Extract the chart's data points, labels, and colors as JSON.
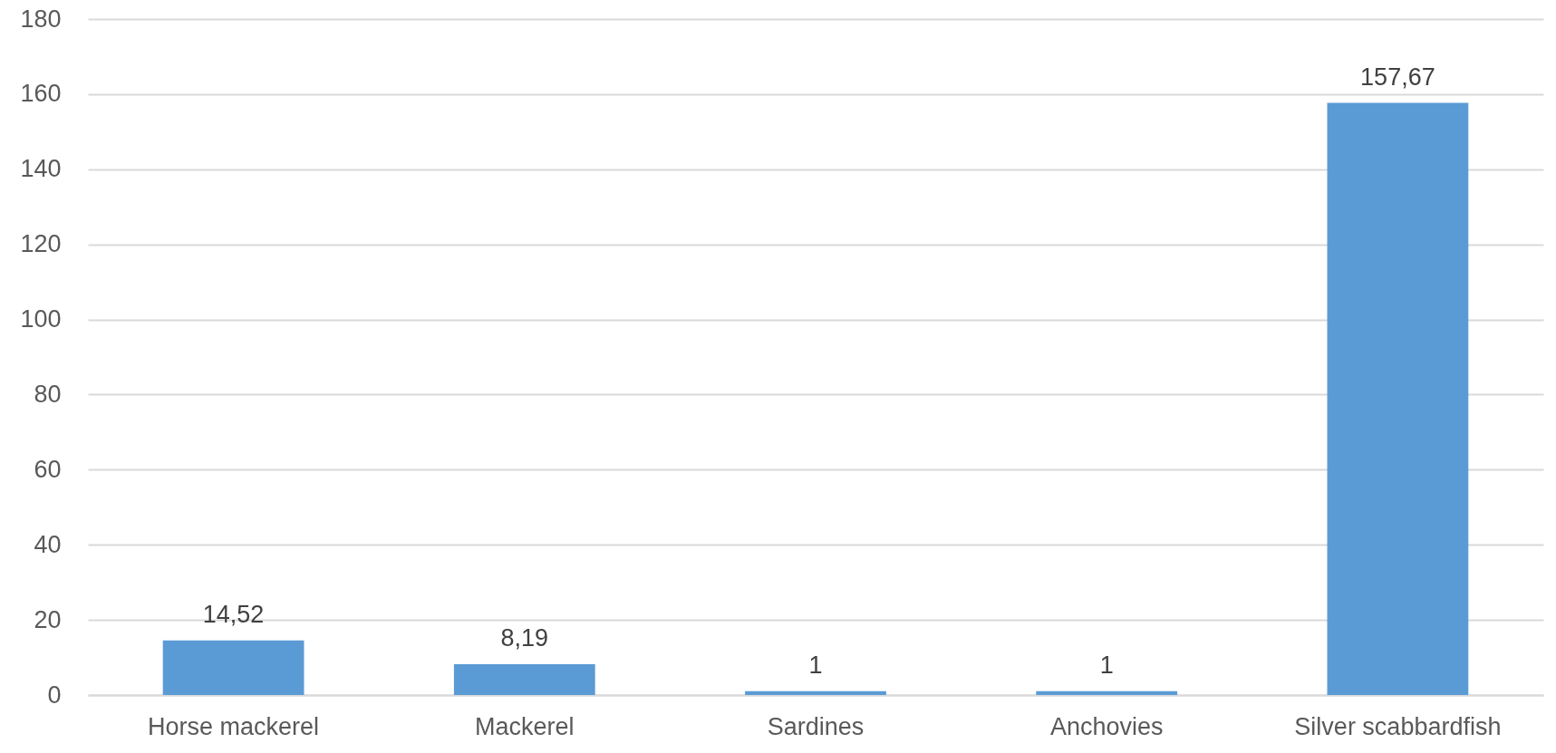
{
  "chart_data": {
    "type": "bar",
    "categories": [
      "Horse mackerel",
      "Mackerel",
      "Sardines",
      "Anchovies",
      "Silver scabbardfish"
    ],
    "values": [
      14.52,
      8.19,
      1,
      1,
      157.67
    ],
    "value_labels": [
      "14,52",
      "8,19",
      "1",
      "1",
      "157,67"
    ],
    "color": "#5b9bd5",
    "ylim": [
      0,
      180
    ],
    "yticks": [
      0,
      20,
      40,
      60,
      80,
      100,
      120,
      140,
      160,
      180
    ],
    "grid": "y"
  }
}
